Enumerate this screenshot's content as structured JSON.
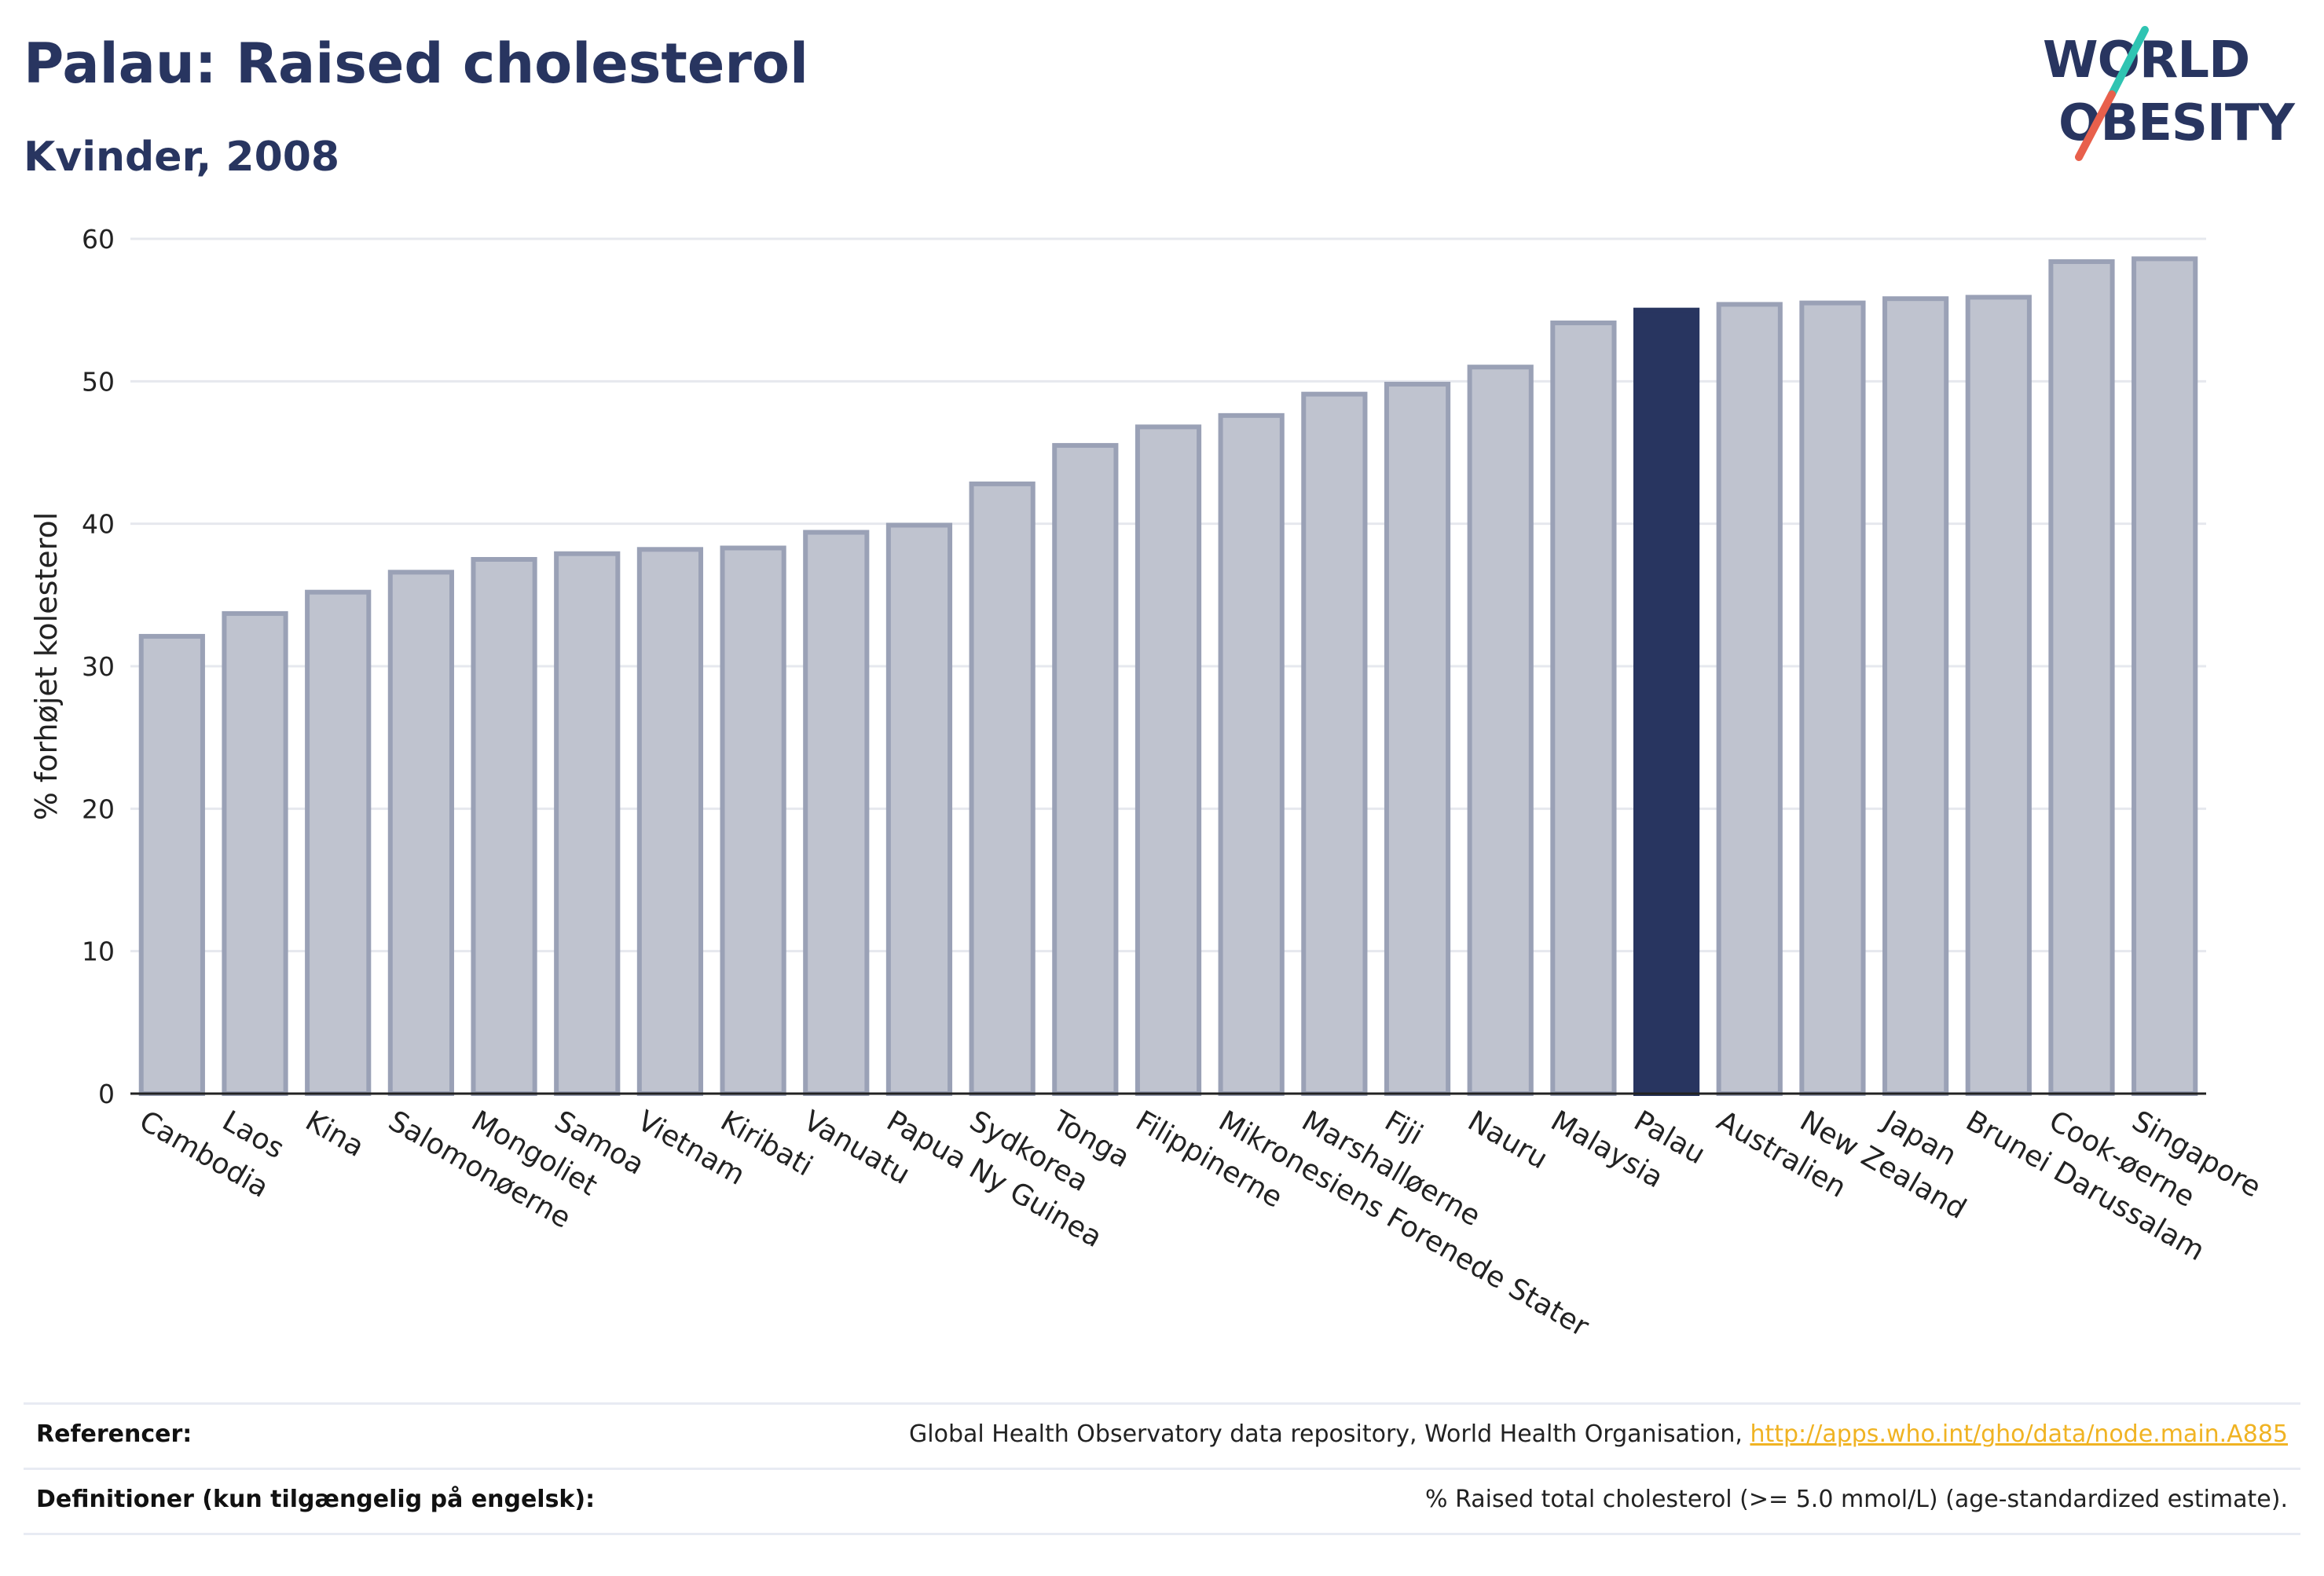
{
  "header": {
    "title": "Palau: Raised cholesterol",
    "subtitle": "Kvinder, 2008"
  },
  "logo": {
    "line1": "WORLD",
    "line2": "OBESITY",
    "colors": {
      "text": "#283560",
      "slash_teal": "#2fc4b2",
      "slash_red": "#e8604c"
    }
  },
  "chart_data": {
    "type": "bar",
    "ylabel": "% forhøjet kolesterol",
    "xlabel": "",
    "ylim": [
      0,
      60
    ],
    "yticks": [
      0,
      10,
      20,
      30,
      40,
      50,
      60
    ],
    "grid": true,
    "highlight": "Palau",
    "colors": {
      "bar": "#bfc3cf",
      "bar_border": "#9aa1b6",
      "highlight": "#283560",
      "grid": "#e6e8ee"
    },
    "categories": [
      "Cambodia",
      "Laos",
      "Kina",
      "Salomonøerne",
      "Mongoliet",
      "Samoa",
      "Vietnam",
      "Kiribati",
      "Vanuatu",
      "Papua Ny Guinea",
      "Sydkorea",
      "Tonga",
      "Filippinerne",
      "Mikronesiens Forenede Stater",
      "Marshalløerne",
      "Fiji",
      "Nauru",
      "Malaysia",
      "Palau",
      "Australien",
      "New Zealand",
      "Japan",
      "Brunei Darussalam",
      "Cook-øerne",
      "Singapore"
    ],
    "values": [
      32.1,
      33.7,
      35.2,
      36.6,
      37.5,
      37.9,
      38.2,
      38.3,
      39.4,
      39.9,
      42.8,
      45.5,
      46.8,
      47.6,
      49.1,
      49.8,
      51.0,
      54.1,
      55.0,
      55.4,
      55.5,
      55.8,
      55.9,
      58.4,
      58.6
    ]
  },
  "footer": {
    "references_label": "Referencer:",
    "references_text": "Global Health Observatory data repository, World Health Organisation, ",
    "references_link": "http://apps.who.int/gho/data/node.main.A885",
    "definitions_label": "Definitioner (kun tilgængelig på engelsk):",
    "definitions_text": "% Raised total cholesterol (>= 5.0 mmol/L) (age-standardized estimate)."
  }
}
